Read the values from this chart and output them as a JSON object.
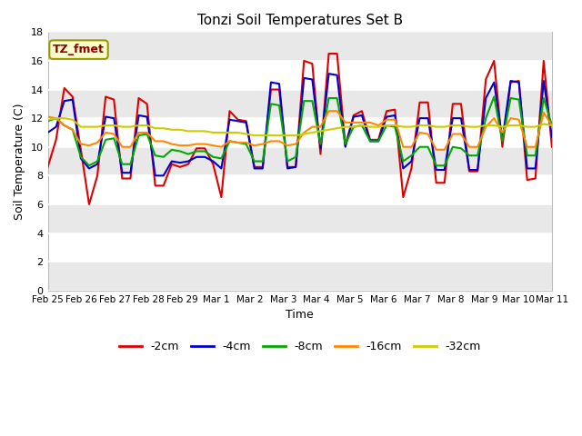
{
  "title": "Tonzi Soil Temperatures Set B",
  "xlabel": "Time",
  "ylabel": "Soil Temperature (C)",
  "ylim": [
    0,
    18
  ],
  "yticks": [
    0,
    2,
    4,
    6,
    8,
    10,
    12,
    14,
    16,
    18
  ],
  "x_tick_labels": [
    "Feb 25",
    "Feb 26",
    "Feb 27",
    "Feb 28",
    "Feb 29",
    "Mar 1",
    "Mar 2",
    "Mar 3",
    "Mar 4",
    "Mar 5",
    "Mar 6",
    "Mar 7",
    "Mar 8",
    "Mar 9",
    "Mar 10",
    "Mar 11"
  ],
  "annotation_text": "TZ_fmet",
  "annotation_color": "#8B0000",
  "annotation_bg": "#FFFFCC",
  "annotation_border": "#999900",
  "fig_bg": "#FFFFFF",
  "plot_bg_light": "#FFFFFF",
  "plot_bg_dark": "#E8E8E8",
  "grid_color": "#CCCCCC",
  "lines": {
    "neg2cm": {
      "label": "-2cm",
      "color": "#DD0000",
      "lw": 1.5
    },
    "neg4cm": {
      "label": "-4cm",
      "color": "#0000CC",
      "lw": 1.5
    },
    "neg8cm": {
      "label": "-8cm",
      "color": "#00AA00",
      "lw": 1.5
    },
    "neg16cm": {
      "label": "-16cm",
      "color": "#FF8800",
      "lw": 1.5
    },
    "neg32cm": {
      "label": "-32cm",
      "color": "#CCCC00",
      "lw": 1.5
    }
  },
  "t_neg2cm": [
    8.6,
    10.5,
    14.1,
    13.5,
    9.8,
    6.0,
    8.0,
    13.5,
    13.3,
    7.8,
    7.8,
    13.4,
    13.0,
    7.3,
    7.3,
    8.8,
    8.6,
    8.8,
    9.9,
    9.9,
    8.8,
    6.5,
    12.5,
    11.9,
    11.8,
    8.6,
    8.6,
    14.0,
    14.0,
    8.6,
    8.6,
    16.0,
    15.8,
    9.5,
    16.5,
    16.5,
    10.1,
    12.2,
    12.5,
    10.5,
    10.5,
    12.5,
    12.6,
    6.5,
    8.5,
    13.1,
    13.1,
    7.5,
    7.5,
    13.0,
    13.0,
    8.3,
    8.3,
    14.7,
    16.0,
    10.0,
    14.5,
    14.6,
    7.7,
    7.8,
    16.0,
    10.0
  ],
  "t_neg4cm": [
    11.0,
    11.4,
    13.2,
    13.3,
    9.2,
    8.5,
    8.8,
    12.1,
    12.0,
    8.2,
    8.2,
    12.2,
    12.1,
    8.0,
    8.0,
    9.0,
    8.9,
    9.0,
    9.3,
    9.3,
    9.0,
    8.5,
    11.9,
    11.8,
    11.7,
    8.5,
    8.5,
    14.5,
    14.4,
    8.5,
    8.6,
    14.8,
    14.7,
    9.9,
    15.1,
    15.0,
    10.0,
    12.1,
    12.2,
    10.4,
    10.4,
    12.1,
    12.2,
    8.5,
    9.0,
    12.0,
    12.0,
    8.4,
    8.4,
    12.0,
    12.0,
    8.4,
    8.4,
    13.4,
    14.5,
    10.5,
    14.6,
    14.5,
    8.5,
    8.5,
    14.6,
    10.7
  ],
  "t_neg8cm": [
    11.8,
    12.0,
    11.5,
    11.2,
    9.3,
    8.7,
    9.0,
    10.5,
    10.6,
    8.8,
    8.8,
    10.8,
    10.9,
    9.4,
    9.3,
    9.8,
    9.7,
    9.5,
    9.7,
    9.7,
    9.3,
    9.2,
    10.4,
    10.3,
    10.2,
    9.0,
    9.0,
    13.0,
    12.9,
    9.0,
    9.3,
    13.2,
    13.2,
    10.2,
    13.4,
    13.4,
    10.2,
    11.4,
    11.5,
    10.4,
    10.4,
    11.5,
    11.4,
    9.0,
    9.4,
    10.0,
    10.0,
    8.7,
    8.7,
    10.0,
    9.9,
    9.4,
    9.4,
    12.0,
    13.5,
    10.4,
    13.4,
    13.3,
    9.4,
    9.4,
    13.4,
    11.5
  ],
  "t_neg16cm": [
    12.1,
    12.0,
    11.5,
    11.2,
    10.2,
    10.1,
    10.3,
    11.0,
    10.9,
    10.0,
    10.0,
    11.0,
    11.0,
    10.4,
    10.4,
    10.2,
    10.1,
    10.1,
    10.2,
    10.2,
    10.1,
    10.0,
    10.4,
    10.3,
    10.3,
    10.1,
    10.2,
    10.4,
    10.4,
    10.1,
    10.2,
    11.0,
    11.4,
    11.4,
    12.5,
    12.5,
    11.7,
    11.7,
    11.7,
    11.7,
    11.5,
    11.9,
    11.9,
    10.0,
    10.0,
    11.0,
    10.9,
    9.8,
    9.8,
    10.9,
    10.9,
    10.0,
    10.0,
    11.4,
    12.0,
    11.0,
    12.0,
    11.9,
    10.0,
    10.0,
    12.4,
    11.5
  ],
  "t_neg32cm": [
    11.9,
    12.0,
    12.0,
    11.9,
    11.4,
    11.4,
    11.4,
    11.5,
    11.5,
    11.4,
    11.4,
    11.5,
    11.5,
    11.3,
    11.3,
    11.2,
    11.2,
    11.1,
    11.1,
    11.1,
    11.0,
    11.0,
    11.0,
    11.0,
    10.9,
    10.8,
    10.8,
    10.8,
    10.8,
    10.8,
    10.8,
    10.9,
    11.0,
    11.1,
    11.2,
    11.3,
    11.4,
    11.4,
    11.5,
    11.4,
    11.4,
    11.5,
    11.5,
    11.4,
    11.4,
    11.5,
    11.5,
    11.4,
    11.4,
    11.5,
    11.5,
    11.4,
    11.4,
    11.5,
    11.5,
    11.4,
    11.5,
    11.5,
    11.4,
    11.4,
    11.6,
    11.5
  ]
}
